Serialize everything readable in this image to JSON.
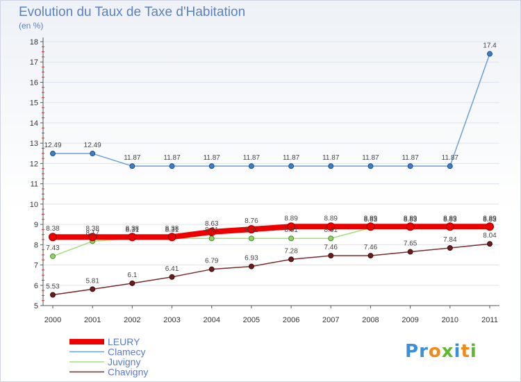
{
  "header": {
    "title": "Evolution du Taux de Taxe d'Habitation",
    "subtitle": "(en %)"
  },
  "logo": {
    "text": "Proxiti",
    "colors": [
      "#3a8fd8",
      "#3a8fd8",
      "#f08a1c",
      "#5cba2e",
      "#3a8fd8",
      "#f08a1c",
      "#5cba2e"
    ]
  },
  "chart_data": {
    "type": "line",
    "title": "Evolution du Taux de Taxe d'Habitation",
    "ylabel": "(en %)",
    "xlabel": "",
    "ylim": [
      5,
      18
    ],
    "yticks": [
      5,
      6,
      7,
      8,
      9,
      10,
      11,
      12,
      13,
      14,
      15,
      16,
      17,
      18
    ],
    "x": [
      "2000",
      "2001",
      "2002",
      "2003",
      "2004",
      "2005",
      "2006",
      "2007",
      "2008",
      "2009",
      "2010",
      "2011"
    ],
    "legend_position": "bottom-left",
    "series": [
      {
        "name": "LEURY",
        "color": "#ee0000",
        "values": [
          8.38,
          8.38,
          8.38,
          8.38,
          8.63,
          8.76,
          8.89,
          8.89,
          8.89,
          8.89,
          8.89,
          8.89
        ]
      },
      {
        "name": "Clamecy",
        "color": "#6aa0d8",
        "values": [
          12.49,
          12.49,
          11.87,
          11.87,
          11.87,
          11.87,
          11.87,
          11.87,
          11.87,
          11.87,
          11.87,
          17.4
        ]
      },
      {
        "name": "Juvigny",
        "color": "#9ee07a",
        "values": [
          7.43,
          8.17,
          8.31,
          8.31,
          8.31,
          8.31,
          8.31,
          8.31,
          8.83,
          8.83,
          8.83,
          8.83
        ]
      },
      {
        "name": "Chavigny",
        "color": "#7a2a2a",
        "values": [
          5.53,
          5.81,
          6.1,
          6.41,
          6.79,
          6.93,
          7.28,
          7.46,
          7.46,
          7.65,
          7.84,
          8.04
        ]
      }
    ]
  }
}
